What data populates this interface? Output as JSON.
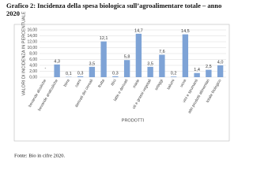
{
  "chart_data": {
    "type": "bar",
    "title": "Grafico 2: Incidenza della spesa biologica sull’agroalimentare totale – anno 2020",
    "y_label": "VALORI DI INCIDENZA IN PERCENTUALE",
    "x_label": "PRODOTTI",
    "source": "Fonte: Bio in cifre 2020.",
    "categories": [
      "bevande alcoliche",
      "bevande analcoliche",
      "birra",
      "carni",
      "derivati dei cereali",
      "frutta",
      "ittici",
      "latte e derivati",
      "miele",
      "oli e grassi vegetali",
      "ortaggi",
      "salumi",
      "uova",
      "vini e spumanti",
      "altri prodotti alimentari",
      "totale biologico"
    ],
    "values": [
      null,
      4.3,
      0.1,
      0.3,
      3.5,
      12.1,
      0.3,
      5.8,
      14.7,
      3.5,
      7.6,
      0.2,
      14.5,
      1.4,
      2.5,
      4.0
    ],
    "value_labels": [
      "-",
      "4,3",
      "0,1",
      "0,3",
      "3,5",
      "12,1",
      "0,3",
      "5,8",
      "14,7",
      "3,5",
      "7,6",
      "0,2",
      "14,5",
      "1,4",
      "2,5",
      "4,0"
    ],
    "color": "#7ea3d6",
    "ylim": [
      0,
      16
    ],
    "yticks": [
      {
        "value": 0,
        "label": "0,00"
      },
      {
        "value": 2,
        "label": "2,00"
      },
      {
        "value": 4,
        "label": "4,00"
      },
      {
        "value": 6,
        "label": "6,00"
      },
      {
        "value": 8,
        "label": "8,00"
      },
      {
        "value": 10,
        "label": "10,00"
      },
      {
        "value": 12,
        "label": "12,00"
      },
      {
        "value": 14,
        "label": "14,00"
      },
      {
        "value": 16,
        "label": "16,00"
      }
    ],
    "grid": true
  }
}
